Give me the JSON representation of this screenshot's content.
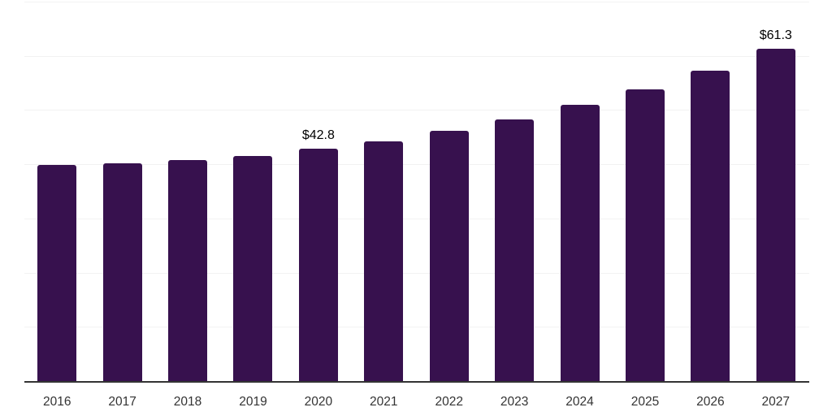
{
  "chart_data": {
    "type": "bar",
    "title": "",
    "xlabel": "",
    "ylabel": "",
    "categories": [
      "2016",
      "2017",
      "2018",
      "2019",
      "2020",
      "2021",
      "2022",
      "2023",
      "2024",
      "2025",
      "2026",
      "2027"
    ],
    "values": [
      39.8,
      40.2,
      40.8,
      41.5,
      42.8,
      44.2,
      46.1,
      48.2,
      50.9,
      53.8,
      57.3,
      61.3
    ],
    "annotations": [
      {
        "category": "2020",
        "text": "$42.8"
      },
      {
        "category": "2027",
        "text": "$61.3"
      }
    ],
    "ylim": [
      0,
      70
    ],
    "gridline_step": 10,
    "grid": "horizontal",
    "legend": "none",
    "y_axis_labels_visible": false,
    "colors": {
      "bar": "#37114E",
      "gridline": "#f2f2f2",
      "axis_line": "#333333",
      "tick_label": "#333333",
      "data_label": "#000000",
      "background": "#ffffff"
    }
  }
}
